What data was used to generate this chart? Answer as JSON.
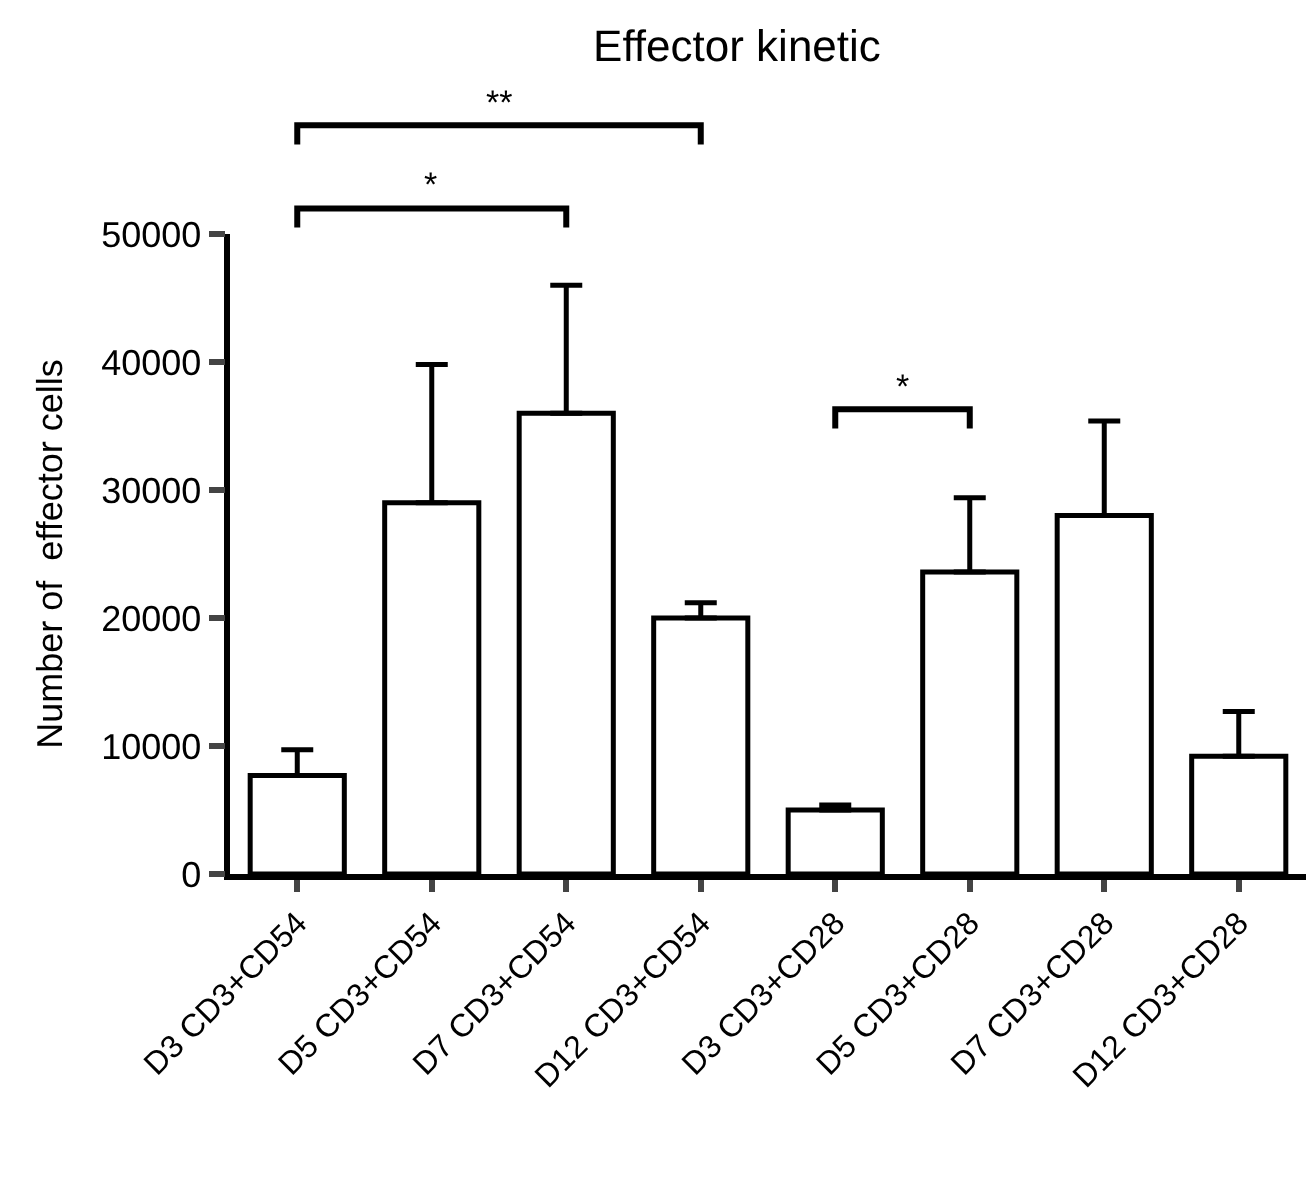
{
  "chart_data": {
    "type": "bar",
    "title": "Effector kinetic",
    "ylabel": "Number of  effector cells",
    "categories": [
      "D3 CD3+CD54",
      "D5 CD3+CD54",
      "D7 CD3+CD54",
      "D12 CD3+CD54",
      "D3 CD3+CD28",
      "D5 CD3+CD28",
      "D7 CD3+CD28",
      "D12 CD3+CD28"
    ],
    "values": [
      7700,
      29000,
      36000,
      20000,
      5000,
      23600,
      28000,
      9200
    ],
    "errors": [
      [
        7700,
        9700
      ],
      [
        29000,
        39800
      ],
      [
        36000,
        46000
      ],
      [
        20000,
        21200
      ],
      [
        5000,
        5400
      ],
      [
        23600,
        29400
      ],
      [
        28000,
        35400
      ],
      [
        9200,
        12700
      ]
    ],
    "color": "#ffffff",
    "ylim": [
      0,
      50000
    ],
    "yticks": [
      0,
      10000,
      20000,
      30000,
      40000,
      50000
    ],
    "annotations": [
      "**",
      "*",
      "*"
    ]
  }
}
